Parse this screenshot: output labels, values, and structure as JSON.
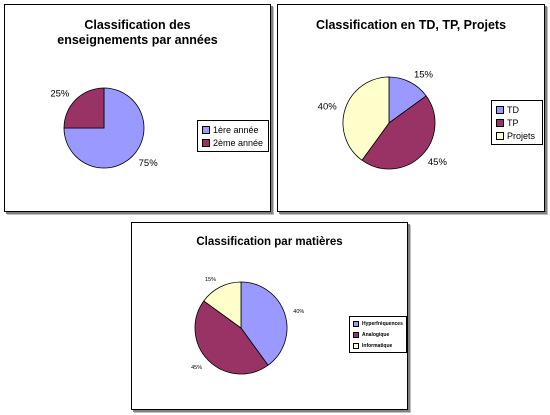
{
  "chart_data": [
    {
      "type": "pie",
      "title": "Classification des\nenseignements par années",
      "categories": [
        "1ère année",
        "2ème année"
      ],
      "values": [
        75,
        25
      ],
      "data_labels": [
        "75%",
        "25%"
      ],
      "colors": [
        "#9999ff",
        "#993366"
      ],
      "legend": "right"
    },
    {
      "type": "pie",
      "title": "Classification en TD, TP, Projets",
      "categories": [
        "TD",
        "TP",
        "Projets"
      ],
      "values": [
        15,
        45,
        40
      ],
      "data_labels": [
        "15%",
        "45%",
        "40%"
      ],
      "colors": [
        "#9999ff",
        "#993366",
        "#ffffcc"
      ],
      "legend": "right"
    },
    {
      "type": "pie",
      "title": "Classification par matières",
      "categories": [
        "Hyperfréquences",
        "Analogique",
        "Informatique"
      ],
      "values": [
        40,
        45,
        15
      ],
      "data_labels": [
        "40%",
        "45%",
        "15%"
      ],
      "colors": [
        "#9999ff",
        "#993366",
        "#ffffcc"
      ],
      "legend": "right"
    }
  ]
}
